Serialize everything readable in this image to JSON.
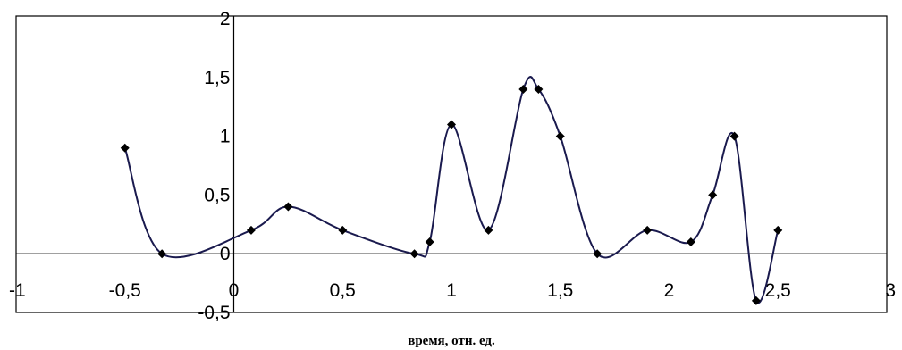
{
  "chart_data": {
    "type": "scatter",
    "title": "",
    "xlabel": "время, отн. ед.",
    "ylabel": "",
    "xlim": [
      -1,
      3
    ],
    "ylim": [
      -0.5,
      2
    ],
    "x_ticks": [
      -1,
      -0.5,
      0,
      0.5,
      1,
      1.5,
      2,
      2.5,
      3
    ],
    "y_ticks": [
      -0.5,
      0,
      0.5,
      1,
      1.5,
      2
    ],
    "x_tick_labels": [
      "-1",
      "-0,5",
      "0",
      "0,5",
      "1",
      "1,5",
      "2",
      "2,5",
      "3"
    ],
    "y_tick_labels": [
      "-0,5",
      "0",
      "0,5",
      "1",
      "1,5",
      "2"
    ],
    "grid": false,
    "legend": "none",
    "series": [
      {
        "color": "#1a1a4e",
        "marker": "diamond",
        "line": "smooth",
        "x": [
          -0.5,
          -0.33,
          0.08,
          0.25,
          0.5,
          0.83,
          0.9,
          1.0,
          1.17,
          1.33,
          1.4,
          1.5,
          1.67,
          1.9,
          2.1,
          2.2,
          2.3,
          2.4,
          2.5
        ],
        "y": [
          0.9,
          0.0,
          0.2,
          0.4,
          0.2,
          0.0,
          0.1,
          1.1,
          0.2,
          1.4,
          1.4,
          1.0,
          0.0,
          0.2,
          0.1,
          0.5,
          1.0,
          -0.4,
          0.2
        ]
      }
    ]
  }
}
